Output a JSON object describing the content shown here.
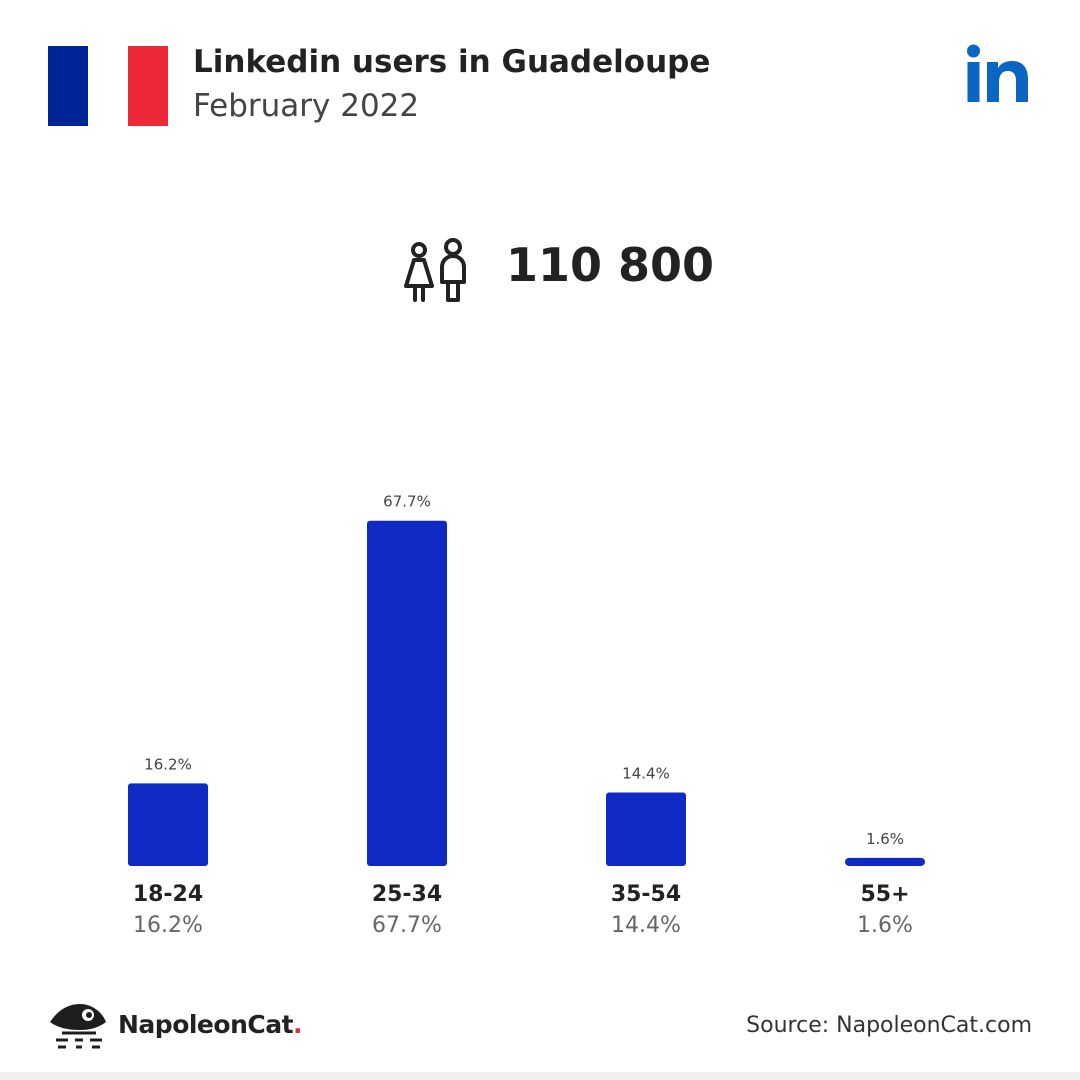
{
  "header": {
    "title": "Linkedin users in Guadeloupe",
    "subtitle": "February 2022",
    "brand_icon": "linkedin-icon",
    "flag_colors": [
      "#002395",
      "#ffffff",
      "#ed2939"
    ]
  },
  "total": {
    "icon": "people-icon",
    "value": "110 800"
  },
  "chart_data": {
    "type": "bar",
    "categories": [
      "18-24",
      "25-34",
      "35-54",
      "55+"
    ],
    "values": [
      16.2,
      67.7,
      14.4,
      1.6
    ],
    "data_labels": [
      "16.2%",
      "67.7%",
      "14.4%",
      "1.6%"
    ],
    "title": "",
    "xlabel": "",
    "ylabel": "",
    "unit": "%",
    "grid": false,
    "bar_color": "#102ac4"
  },
  "footer": {
    "brand_name": "NapoleonCat",
    "brand_dot": ".",
    "logo_icon": "napoleoncat-logo-icon",
    "source": "Source: NapoleonCat.com"
  },
  "colors": {
    "linkedin_blue": "#0a66c2",
    "accent_red": "#ed2939",
    "text": "#222222"
  }
}
